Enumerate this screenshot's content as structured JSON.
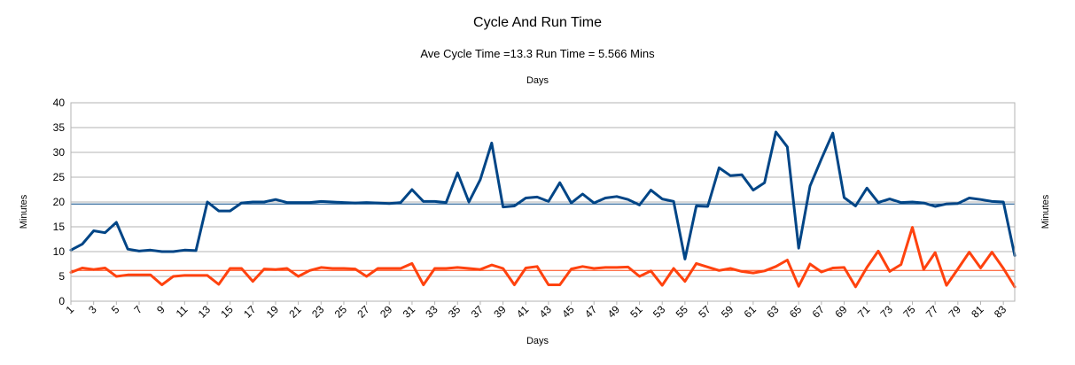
{
  "chart_data": {
    "type": "line",
    "title": "Cycle And Run Time",
    "subtitle": "Ave Cycle Time =13.3 Run Time  = 5.566 Mins",
    "xlabel": "Days",
    "x2label": "Days",
    "ylabel": "Minutes",
    "y2label": "Minutes",
    "ylim": [
      0,
      40
    ],
    "yticks": [
      0,
      5,
      10,
      15,
      20,
      25,
      30,
      35,
      40
    ],
    "xlim": [
      1,
      84
    ],
    "xticks": [
      1,
      3,
      5,
      7,
      9,
      11,
      13,
      15,
      17,
      19,
      21,
      23,
      25,
      27,
      29,
      31,
      33,
      35,
      37,
      39,
      41,
      43,
      45,
      47,
      49,
      51,
      53,
      55,
      57,
      59,
      61,
      63,
      65,
      67,
      69,
      71,
      73,
      75,
      77,
      79,
      81,
      83
    ],
    "grid": true,
    "legend": "none",
    "colors": {
      "cycle": "#004586",
      "run": "#ff420e"
    },
    "reference_lines": [
      {
        "y": 19.6,
        "color": "#004586"
      },
      {
        "y": 6.2,
        "color": "#ff420e"
      }
    ],
    "series": [
      {
        "color": "#004586",
        "values": [
          10.3,
          11.5,
          14.2,
          13.8,
          15.9,
          10.5,
          10.1,
          10.3,
          10.0,
          10.0,
          10.3,
          10.2,
          20.0,
          18.2,
          18.2,
          19.8,
          20.0,
          20.0,
          20.5,
          19.9,
          19.9,
          19.9,
          20.1,
          20.0,
          19.9,
          19.8,
          19.9,
          19.8,
          19.7,
          19.9,
          22.5,
          20.1,
          20.1,
          19.9,
          25.9,
          20.0,
          24.5,
          31.9,
          19.0,
          19.2,
          20.8,
          21.0,
          20.1,
          23.9,
          19.8,
          21.6,
          19.8,
          20.8,
          21.1,
          20.5,
          19.4,
          22.4,
          20.6,
          20.1,
          8.5,
          19.2,
          19.1,
          26.9,
          25.3,
          25.5,
          22.4,
          23.9,
          34.1,
          31.1,
          10.7,
          23.2,
          28.7,
          33.9,
          20.9,
          19.2,
          22.8,
          19.9,
          20.6,
          19.9,
          20.0,
          19.8,
          19.1,
          19.6,
          19.7,
          20.8,
          20.5,
          20.1,
          20.0,
          9.2
        ]
      },
      {
        "color": "#ff420e",
        "values": [
          5.8,
          6.7,
          6.4,
          6.7,
          5.0,
          5.3,
          5.3,
          5.3,
          3.3,
          5.0,
          5.2,
          5.2,
          5.2,
          3.4,
          6.6,
          6.6,
          4.0,
          6.5,
          6.4,
          6.6,
          5.0,
          6.2,
          6.8,
          6.6,
          6.6,
          6.5,
          5.0,
          6.6,
          6.6,
          6.6,
          7.6,
          3.3,
          6.6,
          6.6,
          6.8,
          6.6,
          6.4,
          7.3,
          6.6,
          3.3,
          6.7,
          7.0,
          3.3,
          3.3,
          6.5,
          7.0,
          6.6,
          6.8,
          6.8,
          6.9,
          5.0,
          6.1,
          3.2,
          6.6,
          4.0,
          7.6,
          6.9,
          6.2,
          6.6,
          6.0,
          5.7,
          6.1,
          7.0,
          8.3,
          3.0,
          7.5,
          5.9,
          6.7,
          6.8,
          2.9,
          6.8,
          10.1,
          6.0,
          7.4,
          14.9,
          6.4,
          9.8,
          3.2,
          6.5,
          9.9,
          6.7,
          9.9,
          6.6,
          2.9
        ]
      }
    ]
  }
}
